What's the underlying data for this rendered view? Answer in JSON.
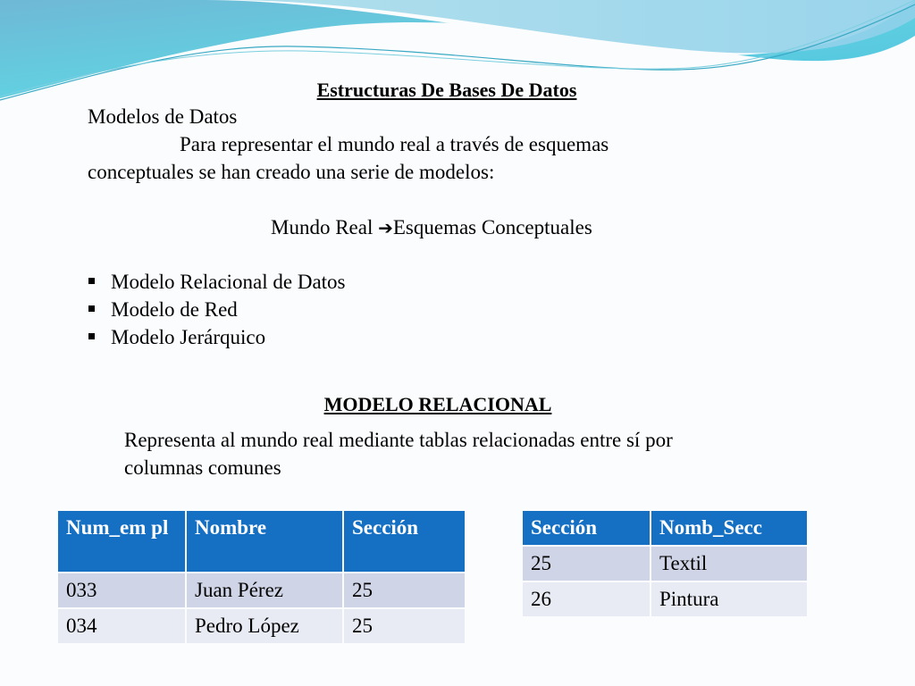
{
  "slide": {
    "title": "Estructuras De Bases De Datos",
    "subtitle": "Modelos de Datos",
    "para_line1": "Para representar el mundo real a través de esquemas",
    "para_line2": "conceptuales se han creado una serie de modelos:",
    "mapping_left": "Mundo Real",
    "mapping_arrow": "➔",
    "mapping_right": "Esquemas Conceptuales",
    "bullets": [
      "Modelo Relacional de Datos",
      "Modelo de Red",
      "Modelo Jerárquico"
    ],
    "section_title": "MODELO RELACIONAL",
    "section_line1": "Representa al mundo real mediante tablas relacionadas entre sí por",
    "section_line2": "columnas comunes"
  },
  "table_employees": {
    "headers": [
      "Num_em pl",
      "Nombre",
      "Sección"
    ],
    "rows": [
      [
        "033",
        "Juan Pérez",
        "25"
      ],
      [
        "034",
        "Pedro López",
        "25"
      ]
    ]
  },
  "table_sections": {
    "headers": [
      "Sección",
      "Nomb_Secc"
    ],
    "rows": [
      [
        "25",
        "Textil"
      ],
      [
        "26",
        "Pintura"
      ]
    ]
  },
  "colors": {
    "header": "#1570c4",
    "row_odd": "#cfd5e7",
    "row_even": "#e8ebf4",
    "wave": "#5cc8dc"
  }
}
